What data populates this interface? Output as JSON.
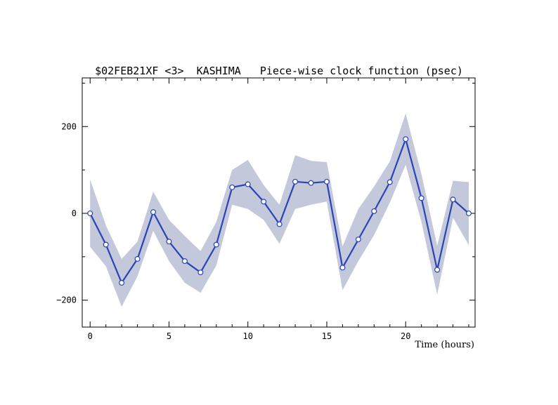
{
  "chart_data": {
    "type": "line",
    "title": "$02FEB21XF <3>  KASHIMA   Piece-wise clock function (psec)",
    "xlabel": "Time (hours)",
    "ylabel": "",
    "xlim": [
      -0.5,
      24.4
    ],
    "ylim": [
      -262,
      312
    ],
    "x_ticks": [
      0,
      5,
      10,
      15,
      20
    ],
    "x_tick_labels": [
      "0",
      "5",
      "10",
      "15",
      "20"
    ],
    "y_ticks": [
      -200,
      0,
      200
    ],
    "y_tick_labels": [
      "−200",
      "0",
      "200"
    ],
    "grid": false,
    "legend": "none",
    "colors": {
      "line": "#2a43b8",
      "band": "#c3c8da",
      "marker_fill": "#ffffff"
    },
    "series": [
      {
        "x": [
          0,
          1,
          2,
          3,
          4,
          5,
          6,
          7,
          8,
          9,
          10,
          11,
          12,
          13,
          14,
          15,
          16,
          17,
          18,
          19,
          20,
          21,
          22,
          23,
          24
        ],
        "values": [
          0,
          -72,
          -160,
          -105,
          3,
          -65,
          -110,
          -136,
          -72,
          60,
          67,
          27,
          -25,
          73,
          70,
          73,
          -125,
          -60,
          5,
          72,
          171,
          35,
          -130,
          32,
          0
        ],
        "upper": [
          78,
          -28,
          -105,
          -65,
          50,
          -15,
          -52,
          -87,
          -20,
          100,
          123,
          65,
          20,
          134,
          121,
          118,
          -76,
          10,
          62,
          120,
          230,
          90,
          -75,
          75,
          72
        ],
        "lower": [
          -77,
          -122,
          -215,
          -145,
          -40,
          -110,
          -160,
          -183,
          -120,
          20,
          10,
          -15,
          -70,
          10,
          20,
          27,
          -177,
          -110,
          -50,
          25,
          112,
          -20,
          -187,
          -10,
          -73
        ]
      }
    ]
  }
}
